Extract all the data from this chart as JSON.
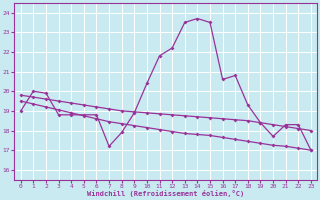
{
  "bg_color": "#c8eaf0",
  "grid_color": "#ffffff",
  "line_color": "#993399",
  "xlabel": "Windchill (Refroidissement éolien,°C)",
  "ylim": [
    15.5,
    24.5
  ],
  "xlim": [
    -0.5,
    23.5
  ],
  "yticks": [
    16,
    17,
    18,
    19,
    20,
    21,
    22,
    23,
    24
  ],
  "xticks": [
    0,
    1,
    2,
    3,
    4,
    5,
    6,
    7,
    8,
    9,
    10,
    11,
    12,
    13,
    14,
    15,
    16,
    17,
    18,
    19,
    20,
    21,
    22,
    23
  ],
  "series1_x": [
    0,
    1,
    2,
    3,
    4,
    5,
    6,
    7,
    8,
    9,
    10,
    11,
    12,
    13,
    14,
    15,
    16,
    17,
    18,
    19,
    20,
    21,
    22,
    23
  ],
  "series1_y": [
    19.0,
    20.0,
    19.9,
    18.8,
    18.8,
    18.8,
    18.8,
    17.2,
    17.9,
    18.9,
    20.4,
    21.8,
    22.2,
    23.5,
    23.7,
    23.5,
    20.6,
    20.8,
    19.3,
    18.4,
    17.7,
    18.3,
    18.3,
    17.0
  ],
  "series2_x": [
    0,
    1,
    2,
    3,
    4,
    5,
    6,
    7,
    8,
    9,
    10,
    11,
    12,
    13,
    14,
    15,
    16,
    17,
    18,
    19,
    20,
    21,
    22,
    23
  ],
  "series2_y": [
    19.8,
    19.7,
    19.6,
    19.5,
    19.4,
    19.3,
    19.2,
    19.1,
    19.0,
    18.95,
    18.9,
    18.85,
    18.8,
    18.75,
    18.7,
    18.65,
    18.6,
    18.55,
    18.5,
    18.4,
    18.3,
    18.2,
    18.1,
    18.0
  ],
  "series3_x": [
    0,
    1,
    2,
    3,
    4,
    5,
    6,
    7,
    8,
    9,
    10,
    11,
    12,
    13,
    14,
    15,
    16,
    17,
    18,
    19,
    20,
    21,
    22,
    23
  ],
  "series3_y": [
    19.5,
    19.35,
    19.2,
    19.05,
    18.9,
    18.75,
    18.6,
    18.45,
    18.35,
    18.25,
    18.15,
    18.05,
    17.95,
    17.85,
    17.8,
    17.75,
    17.65,
    17.55,
    17.45,
    17.35,
    17.25,
    17.2,
    17.1,
    17.0
  ]
}
